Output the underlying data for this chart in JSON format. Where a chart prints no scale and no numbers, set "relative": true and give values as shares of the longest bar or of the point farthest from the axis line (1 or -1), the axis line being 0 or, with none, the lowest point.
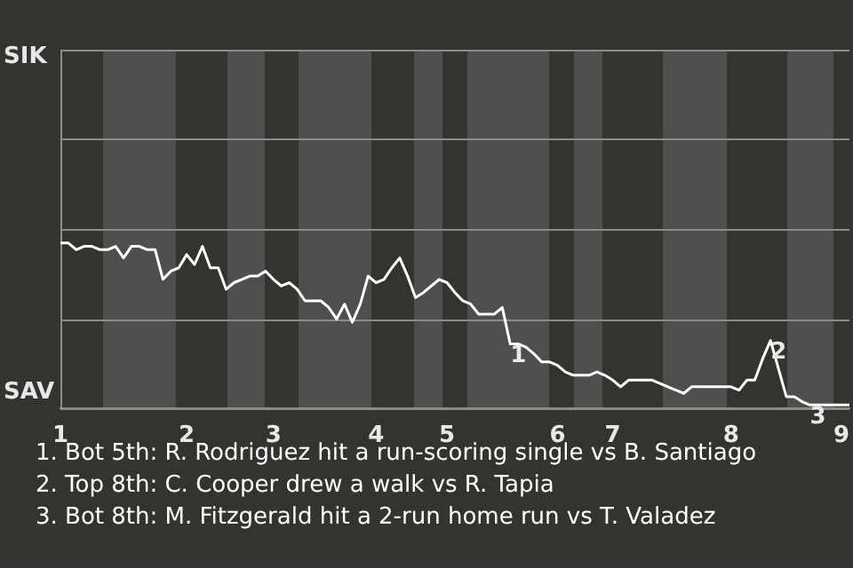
{
  "chart_data": {
    "type": "line",
    "relative": true,
    "categories": [
      "1",
      null,
      null,
      null,
      null,
      null,
      null,
      null,
      null,
      null,
      null,
      null,
      null,
      null,
      null,
      null,
      "2",
      null,
      null,
      null,
      null,
      null,
      null,
      null,
      null,
      null,
      null,
      "3",
      null,
      null,
      null,
      null,
      null,
      null,
      null,
      null,
      null,
      null,
      null,
      null,
      "4",
      null,
      null,
      null,
      null,
      null,
      null,
      null,
      null,
      "5",
      null,
      null,
      null,
      null,
      null,
      null,
      null,
      null,
      null,
      null,
      null,
      null,
      null,
      "6",
      null,
      null,
      null,
      null,
      null,
      null,
      "7",
      null,
      null,
      null,
      null,
      null,
      null,
      null,
      null,
      null,
      null,
      null,
      null,
      null,
      null,
      "8",
      null,
      null,
      null,
      null,
      null,
      null,
      null,
      null,
      null,
      null,
      null,
      null,
      null,
      "9",
      null
    ],
    "series": [
      {
        "color": "#ffffff",
        "values": [
          1.0,
          1.0,
          0.96,
          0.98,
          0.98,
          0.96,
          0.96,
          0.98,
          0.91,
          0.98,
          0.98,
          0.96,
          0.96,
          0.78,
          0.83,
          0.85,
          0.93,
          0.87,
          0.98,
          0.85,
          0.85,
          0.72,
          0.76,
          0.78,
          0.8,
          0.8,
          0.83,
          0.78,
          0.74,
          0.76,
          0.72,
          0.65,
          0.65,
          0.65,
          0.61,
          0.54,
          0.63,
          0.52,
          0.63,
          0.8,
          0.76,
          0.78,
          0.85,
          0.91,
          0.8,
          0.67,
          0.7,
          0.74,
          0.78,
          0.76,
          0.7,
          0.65,
          0.63,
          0.57,
          0.57,
          0.57,
          0.61,
          0.39,
          0.39,
          0.37,
          0.33,
          0.28,
          0.28,
          0.26,
          0.22,
          0.2,
          0.2,
          0.2,
          0.22,
          0.2,
          0.17,
          0.13,
          0.17,
          0.17,
          0.17,
          0.17,
          0.15,
          0.13,
          0.11,
          0.09,
          0.13,
          0.13,
          0.13,
          0.13,
          0.13,
          0.13,
          0.11,
          0.17,
          0.17,
          0.3,
          0.41,
          0.24,
          0.07,
          0.07,
          0.04,
          0.02,
          0.02,
          0.02,
          0.02,
          0.02,
          0.02
        ]
      }
    ],
    "legend": false,
    "marker": "none",
    "line_style": "solid",
    "ref_lines": [
      {
        "axis": "y",
        "value": 0,
        "label": "SAV",
        "color": "#8c8b89"
      },
      {
        "axis": "y",
        "value": 0.54,
        "color": "#8c8b89"
      },
      {
        "axis": "y",
        "value": 1.09,
        "color": "#8c8b89"
      },
      {
        "axis": "y",
        "value": 1.63,
        "color": "#8c8b89"
      },
      {
        "axis": "y",
        "value": 2.17,
        "label": "SIK",
        "color": "#8c8b89"
      }
    ],
    "annotations": [
      {
        "text": "1",
        "y": 0.39
      },
      {
        "text": "2",
        "y": 0.41
      },
      {
        "text": "3",
        "y": 0.02
      },
      "1. Bot 5th: R. Rodriguez hit a run-scoring single vs B. Santiago",
      "2. Top 8th: C. Cooper drew a walk vs R. Tapia",
      "3. Bot 8th: M. Fitzgerald hit a 2-run home run vs T. Valadez"
    ]
  }
}
